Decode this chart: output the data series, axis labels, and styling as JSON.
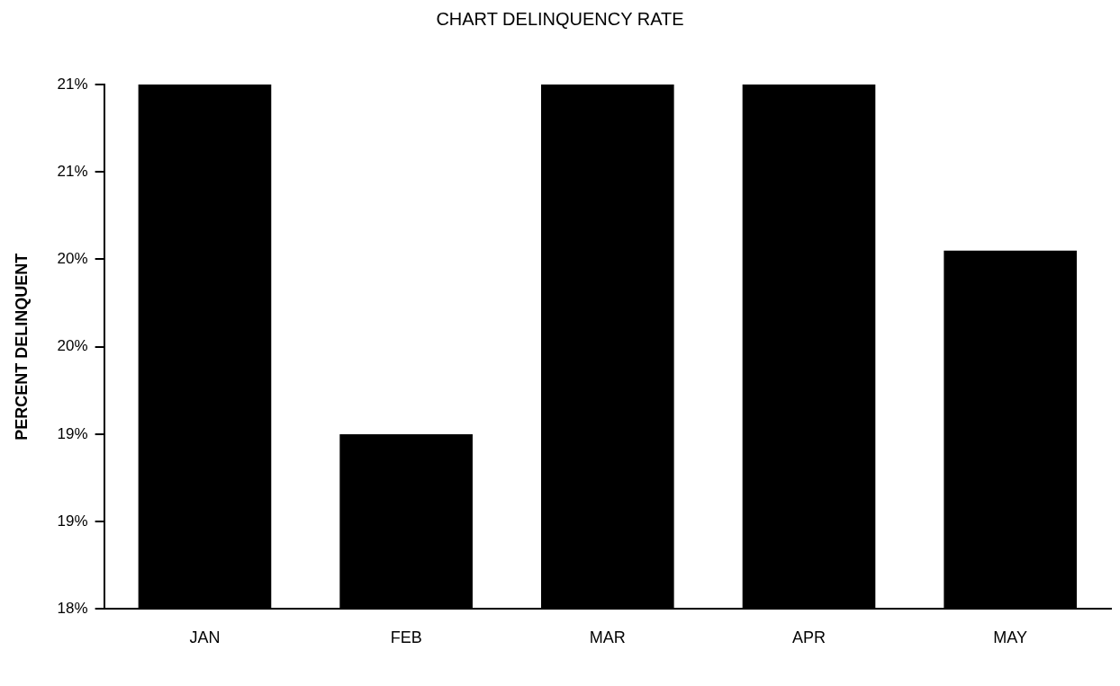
{
  "chart_data": {
    "type": "bar",
    "title": "CHART DELINQUENCY RATE",
    "ylabel": "PERCENT DELINQUENT",
    "categories": [
      "JAN",
      "FEB",
      "MAR",
      "APR",
      "MAY"
    ],
    "values": [
      21.0,
      19.0,
      21.0,
      21.0,
      20.05
    ],
    "color": "#000000",
    "ylim": [
      18,
      21
    ],
    "yticks": [
      {
        "value": 18,
        "label": "18%"
      },
      {
        "value": 18.5,
        "label": "19%"
      },
      {
        "value": 19,
        "label": "19%"
      },
      {
        "value": 19.5,
        "label": "20%"
      },
      {
        "value": 20,
        "label": "20%"
      },
      {
        "value": 20.5,
        "label": "21%"
      },
      {
        "value": 21,
        "label": "21%"
      }
    ],
    "grid": false,
    "legend": false
  }
}
